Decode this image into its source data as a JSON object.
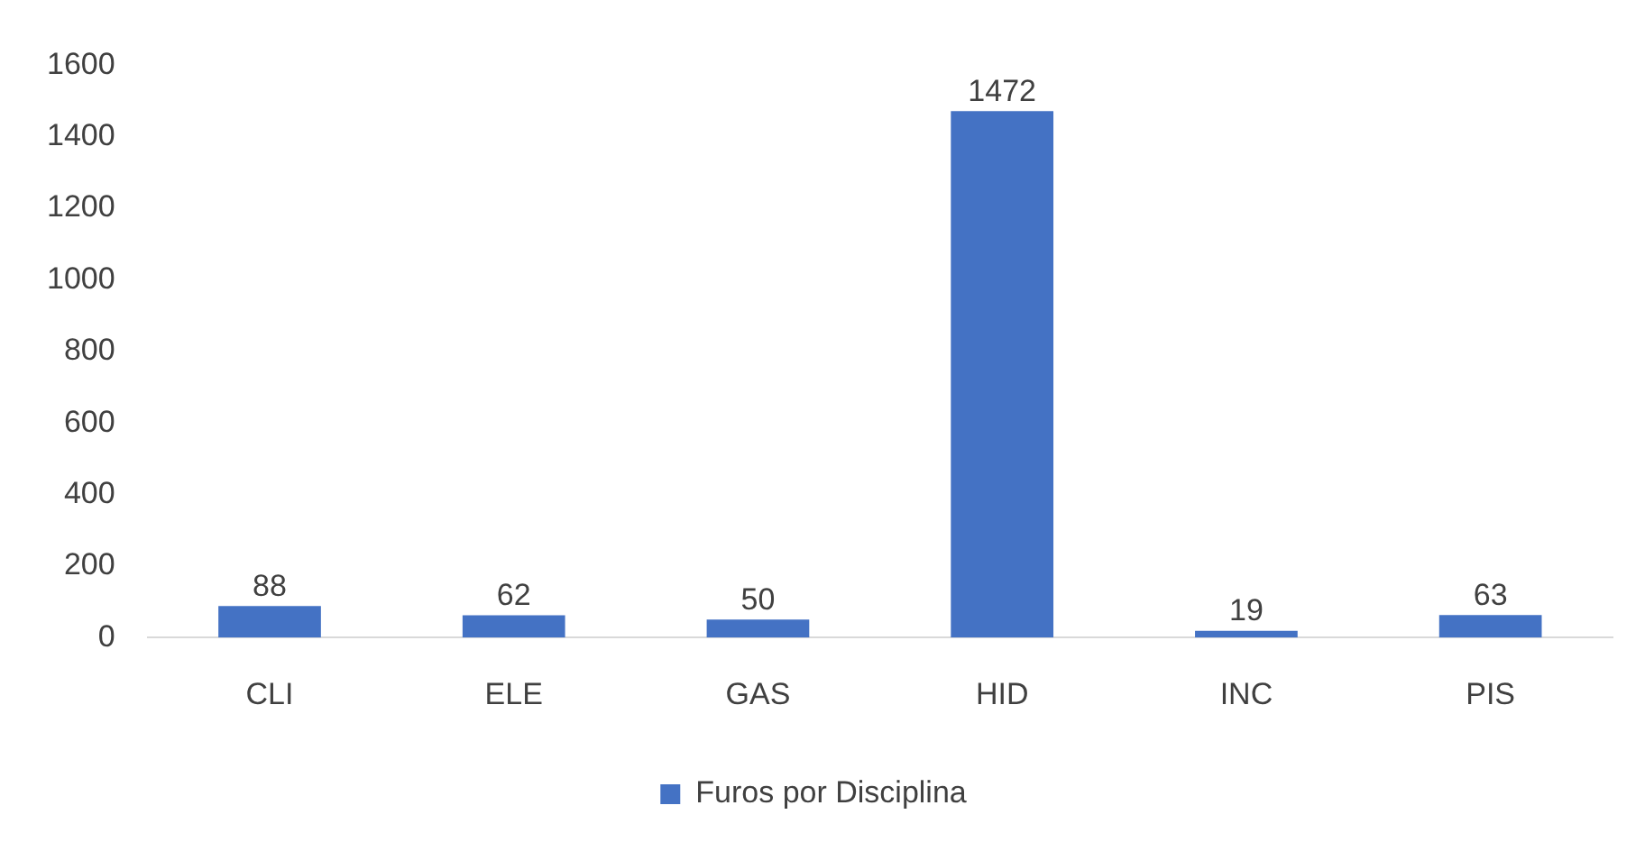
{
  "chart_data": {
    "type": "bar",
    "categories": [
      "CLI",
      "ELE",
      "GAS",
      "HID",
      "INC",
      "PIS"
    ],
    "series": [
      {
        "name": "Furos por Disciplina",
        "color": "#4472c4",
        "values": [
          88,
          62,
          50,
          1472,
          19,
          63
        ]
      }
    ],
    "ylim": [
      0,
      1600
    ],
    "yticks": [
      0,
      200,
      400,
      600,
      800,
      1000,
      1200,
      1400,
      1600
    ],
    "grid": false,
    "legend": "bottom",
    "data_labels": true
  }
}
